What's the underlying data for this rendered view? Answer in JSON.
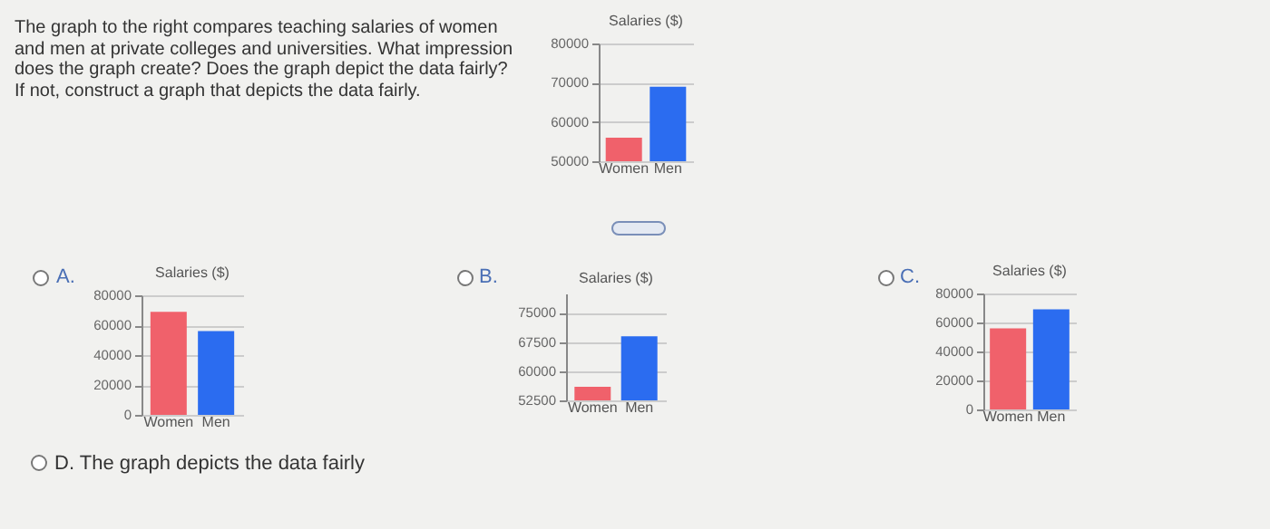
{
  "chart_data": [
    {
      "type": "bar",
      "title": "Salaries ($)",
      "categories": [
        "Women",
        "Men"
      ],
      "values": [
        56000,
        69000
      ],
      "colors": [
        "#f0616b",
        "#2b6cf0"
      ],
      "ylim": [
        50000,
        80000
      ],
      "yticks": [
        50000,
        60000,
        70000,
        80000
      ],
      "grid": true,
      "annotations": [
        "The graph to the right compares teaching salaries of women and men at private colleges and universities. What impression does the graph create? Does the graph depict the data fairly? If not, construct a graph that depicts the data fairly."
      ]
    },
    {
      "type": "bar",
      "title": "Salaries ($)",
      "categories": [
        "Women",
        "Men"
      ],
      "values": [
        69000,
        56000
      ],
      "colors": [
        "#f0616b",
        "#2b6cf0"
      ],
      "ylim": [
        0,
        80000
      ],
      "yticks": [
        0,
        20000,
        40000,
        60000,
        80000
      ],
      "grid": true,
      "annotations": [
        "A.",
        "D.  The graph depicts the data fairly"
      ]
    },
    {
      "type": "bar",
      "title": "Salaries ($)",
      "categories": [
        "Women",
        "Men"
      ],
      "values": [
        56000,
        69000
      ],
      "colors": [
        "#f0616b",
        "#2b6cf0"
      ],
      "ylim": [
        52500,
        80000
      ],
      "yticks": [
        52500,
        60000,
        67500,
        75000
      ],
      "grid": true,
      "annotations": [
        "B."
      ]
    },
    {
      "type": "bar",
      "title": "Salaries ($)",
      "categories": [
        "Women",
        "Men"
      ],
      "values": [
        56000,
        69000
      ],
      "colors": [
        "#f0616b",
        "#2b6cf0"
      ],
      "ylim": [
        0,
        80000
      ],
      "yticks": [
        0,
        20000,
        40000,
        60000,
        80000
      ],
      "grid": true,
      "annotations": [
        "C."
      ]
    }
  ]
}
